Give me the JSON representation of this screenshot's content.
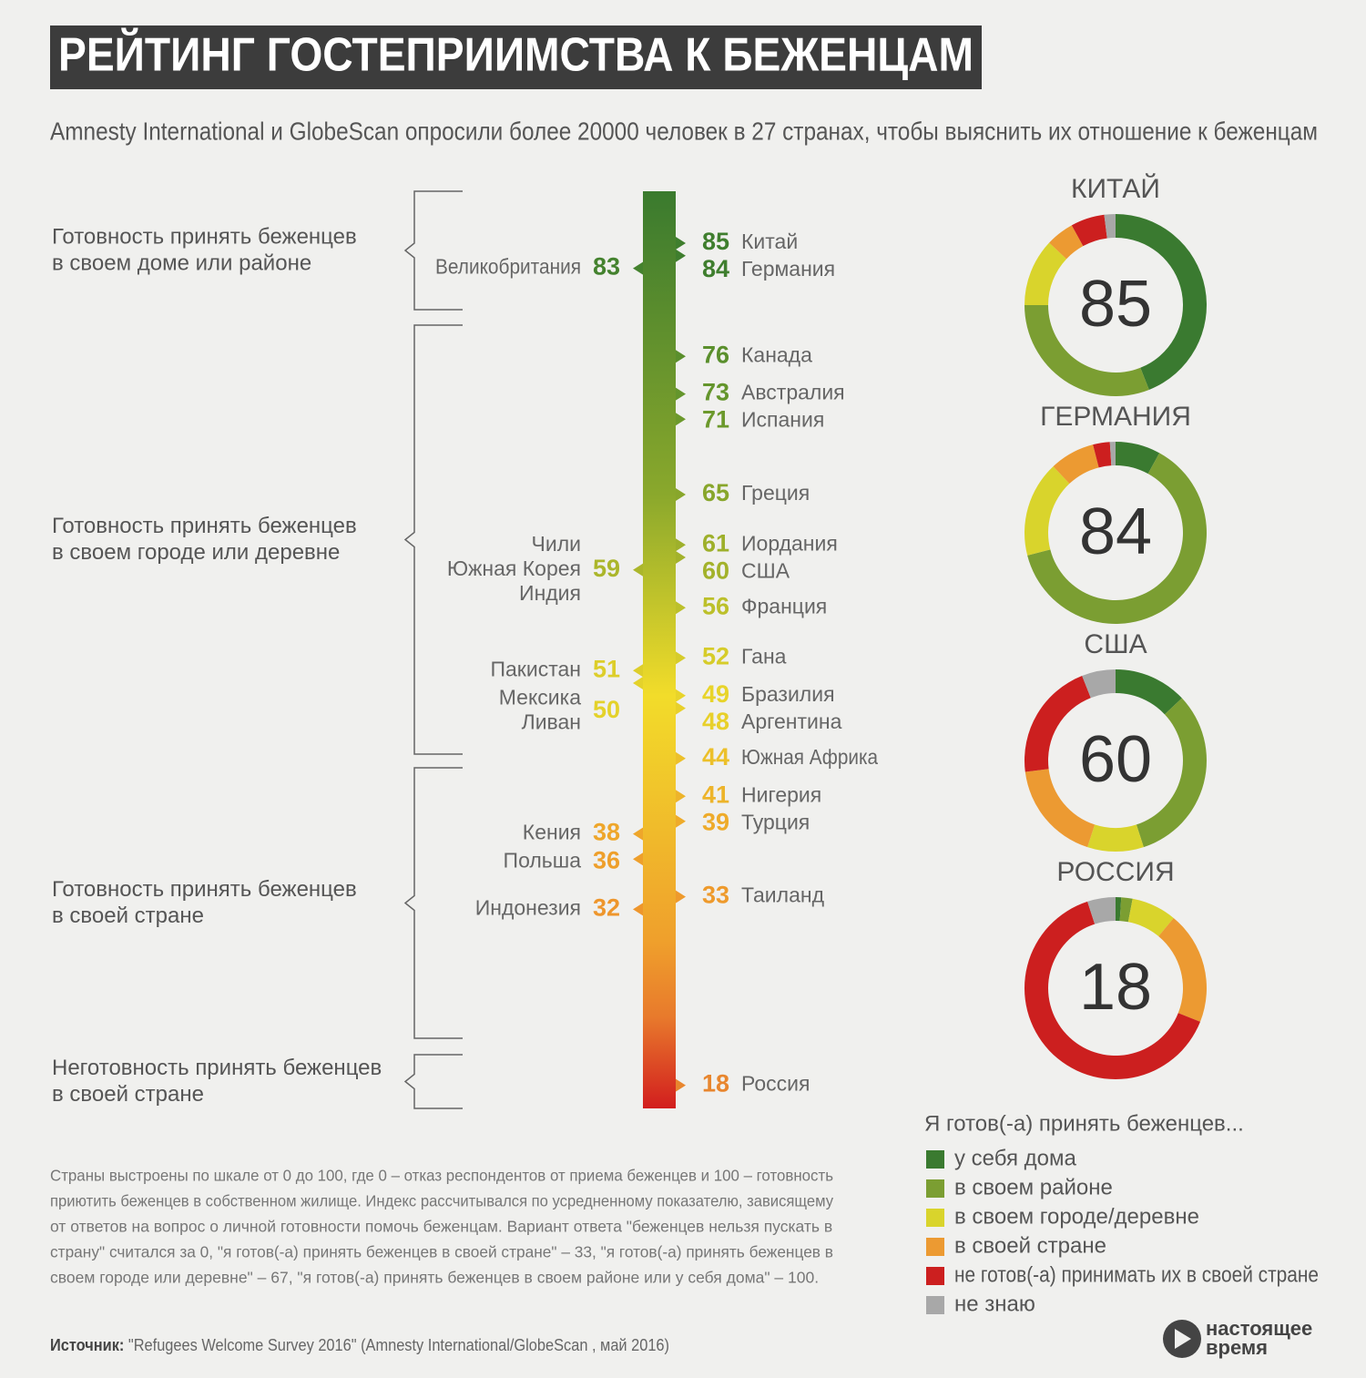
{
  "title": "РЕЙТИНГ ГОСТЕПРИИМСТВА К БЕЖЕНЦАМ",
  "subtitle": "Amnesty International и GlobeScan опросили более 20000 человек в 27 странах, чтобы выяснить их отношение к беженцам",
  "brackets": [
    [
      "Готовность принять беженцев",
      "в своем доме или районе"
    ],
    [
      "Готовность принять беженцев",
      "в своем городе или деревне"
    ],
    [
      "Готовность принять беженцев",
      "в своей стране"
    ],
    [
      "Неготовность принять беженцев",
      "в своей стране"
    ]
  ],
  "chart_data": [
    {
      "type": "scale",
      "right": [
        {
          "value": 85,
          "countries": [
            "Китай"
          ],
          "color": "#3f7e2e"
        },
        {
          "value": 84,
          "countries": [
            "Германия"
          ],
          "color": "#3f7e2e"
        },
        {
          "value": 76,
          "countries": [
            "Канада"
          ],
          "color": "#5a8f2c"
        },
        {
          "value": 73,
          "countries": [
            "Австралия"
          ],
          "color": "#64952c"
        },
        {
          "value": 71,
          "countries": [
            "Испания"
          ],
          "color": "#6c992c"
        },
        {
          "value": 65,
          "countries": [
            "Греция"
          ],
          "color": "#88a62b"
        },
        {
          "value": 61,
          "countries": [
            "Иордания"
          ],
          "color": "#9eb02b"
        },
        {
          "value": 60,
          "countries": [
            "США"
          ],
          "color": "#a3b22b"
        },
        {
          "value": 56,
          "countries": [
            "Франция"
          ],
          "color": "#bcc02a"
        },
        {
          "value": 52,
          "countries": [
            "Гана"
          ],
          "color": "#d6cc2a"
        },
        {
          "value": 49,
          "countries": [
            "Бразилия"
          ],
          "color": "#e8d42a"
        },
        {
          "value": 48,
          "countries": [
            "Аргентина"
          ],
          "color": "#e8d02a"
        },
        {
          "value": 44,
          "countries": [
            "Южная Африка"
          ],
          "color": "#ecc02a"
        },
        {
          "value": 41,
          "countries": [
            "Нигерия"
          ],
          "color": "#edb42a"
        },
        {
          "value": 39,
          "countries": [
            "Турция"
          ],
          "color": "#eeab2a"
        },
        {
          "value": 33,
          "countries": [
            "Таиланд"
          ],
          "color": "#ee9a2c"
        },
        {
          "value": 18,
          "countries": [
            "Россия"
          ],
          "color": "#e8862e"
        }
      ],
      "left": [
        {
          "value": 83,
          "countries": [
            "Великобритания"
          ],
          "color": "#44822e"
        },
        {
          "value": 59,
          "countries": [
            "Чили",
            "Южная Корея",
            "Индия"
          ],
          "color": "#abb62b"
        },
        {
          "value": 51,
          "countries": [
            "Пакистан"
          ],
          "color": "#ddce2a"
        },
        {
          "value": 50,
          "countries": [
            "Мексика",
            "Ливан"
          ],
          "color": "#e4d22a"
        },
        {
          "value": 38,
          "countries": [
            "Кения"
          ],
          "color": "#eea62a"
        },
        {
          "value": 36,
          "countries": [
            "Польша"
          ],
          "color": "#ee9f2b"
        },
        {
          "value": 32,
          "countries": [
            "Индонезия"
          ],
          "color": "#ee962c"
        }
      ]
    },
    {
      "type": "donut",
      "title": "КИТАЙ",
      "center_value": 85,
      "values": [
        44,
        31,
        12,
        5,
        6,
        2
      ]
    },
    {
      "type": "donut",
      "title": "ГЕРМАНИЯ",
      "center_value": 84,
      "values": [
        8,
        63,
        17,
        8,
        3,
        1
      ]
    },
    {
      "type": "donut",
      "title": "США",
      "center_value": 60,
      "values": [
        13,
        32,
        10,
        18,
        21,
        6
      ]
    },
    {
      "type": "donut",
      "title": "РОССИЯ",
      "center_value": 18,
      "values": [
        1,
        2,
        8,
        20,
        64,
        5
      ]
    }
  ],
  "legend": {
    "title": "Я готов(-а) принять беженцев...",
    "items": [
      {
        "label": "у себя дома",
        "color": "#3a7a30"
      },
      {
        "label": "в своем районе",
        "color": "#7b9e32"
      },
      {
        "label": "в своем городе/деревне",
        "color": "#d9d42c"
      },
      {
        "label": "в своей стране",
        "color": "#ec9a32"
      },
      {
        "label": "не готов(-а) принимать их в своей стране",
        "color": "#cc1f1f"
      },
      {
        "label": "не знаю",
        "color": "#a8a8a8"
      }
    ]
  },
  "note": [
    "Страны выстроены по шкале от 0 до 100, где 0 – отказ респондентов от приема беженцев и 100 – готовность",
    "приютить беженцев в собственном жилище. Индекс рассчитывался по усредненному показателю, зависящему",
    "от ответов на вопрос о личной готовности помочь беженцам.  Вариант ответа \"беженцев нельзя пускать в",
    "страну\" считался за 0, \"я готов(-а) принять беженцев в своей стране\" – 33, \"я готов(-а) принять беженцев в",
    "своем городе или деревне\" – 67, \"я готов(-а) принять беженцев в своем районе или у себя дома\" – 100."
  ],
  "source": {
    "label": "Источник:",
    "text": " \"Refugees Welcome Survey 2016\" (Amnesty International/GlobeScan , май 2016)"
  },
  "logo": [
    "настоящее",
    "время"
  ]
}
